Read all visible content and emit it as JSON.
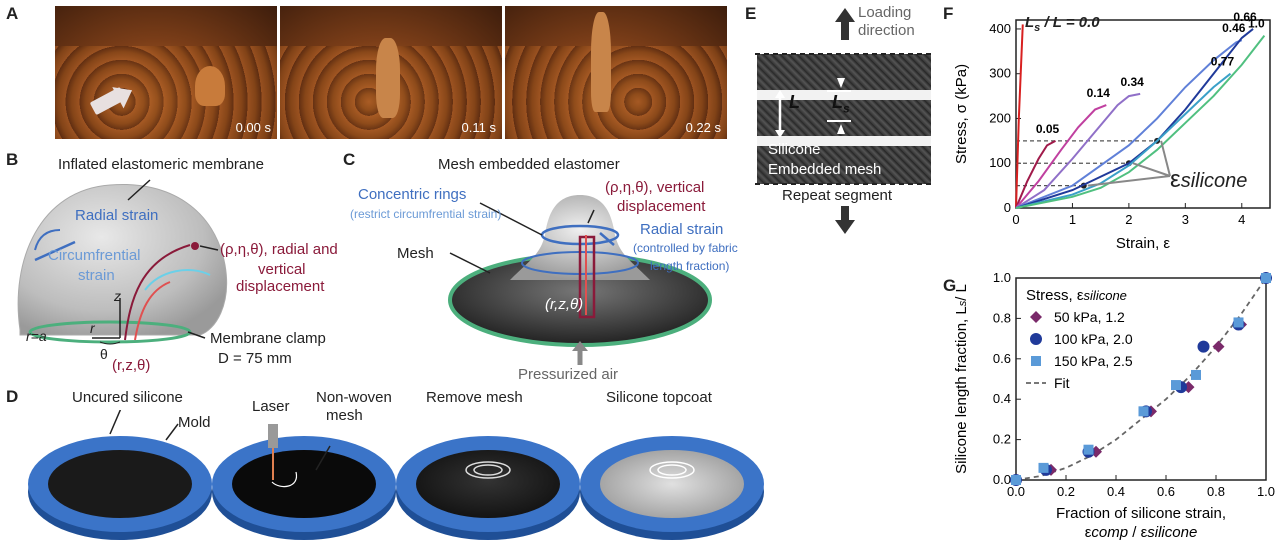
{
  "panels": {
    "A": {
      "label": "A",
      "times": [
        "0.00 s",
        "0.11 s",
        "0.22 s"
      ]
    },
    "B": {
      "label": "B",
      "title": "Inflated elastomeric membrane",
      "radial_strain": "Radial strain",
      "circ1": "Circumfrential",
      "circ2": "strain",
      "disp1": "(ρ,η,θ), radial and",
      "disp2": "vertical",
      "disp3": "displacement",
      "z": "z",
      "r": "r",
      "r_eq_a": "r=a",
      "theta": "θ",
      "coords": "(r,z,θ)",
      "clamp": "Membrane clamp",
      "diameter": "D = 75 mm"
    },
    "C": {
      "label": "C",
      "title": "Mesh embedded elastomer",
      "rings1": "Concentric rings",
      "rings2": "(restrict circumfrential strain)",
      "disp1": "(ρ,η,θ), vertical",
      "disp2": "displacement",
      "radial1": "Radial strain",
      "radial2": "(controlled by fabric",
      "radial3": "length fraction)",
      "mesh": "Mesh",
      "coords": "(r,z,θ)",
      "air": "Pressurized air"
    },
    "D": {
      "label": "D",
      "step1": "Uncured silicone",
      "mold": "Mold",
      "laser": "Laser",
      "nonwoven1": "Non-woven",
      "nonwoven2": "mesh",
      "step3": "Remove mesh",
      "step4": "Silicone topcoat"
    },
    "E": {
      "label": "E",
      "loading1": "Loading",
      "loading2": "direction",
      "L": "L",
      "Ls": "L",
      "Ls_sub": "s",
      "silicone": "Silicone",
      "mesh": "Embedded mesh",
      "repeat": "Repeat segment"
    },
    "F": {
      "label": "F",
      "eps_label": "ε",
      "eps_sub": "silicone",
      "legend_head": "L",
      "legend_sub": "s",
      "legend_tail": " / L = 0.0"
    },
    "G": {
      "label": "G",
      "legend_title": "Stress, ε",
      "legend_title_sub": "silicone",
      "fit": "Fit",
      "ylabel": "Silicone length fraction, L",
      "ylabel_sub": "s",
      "ylabel_tail": "/ L",
      "xlabel1": "Fraction of silicone strain,",
      "xlabel2_a": "ε",
      "xlabel2_b": "comp",
      "xlabel2_c": " / ε",
      "xlabel2_d": "silicone"
    }
  },
  "colors": {
    "red": "#8a1a3a",
    "blue": "#3f6fc0",
    "lightblue": "#6b9ad6",
    "mold": "#3b74c8",
    "green": "#4caf7d"
  },
  "chart_data": [
    {
      "type": "line",
      "xlabel": "Strain, ε",
      "ylabel": "Stress, σ  (kPa)",
      "xlim": [
        0,
        4.5
      ],
      "ylim": [
        0,
        420
      ],
      "xticks": [
        "0",
        "1",
        "2",
        "3",
        "4"
      ],
      "yticks": [
        "0",
        "100",
        "200",
        "300",
        "400"
      ],
      "series": [
        {
          "name": "0.0",
          "color": "#d82020",
          "x": [
            0,
            0.05,
            0.12
          ],
          "y": [
            0,
            200,
            410
          ]
        },
        {
          "name": "0.05",
          "color": "#a01a4a",
          "x": [
            0,
            0.2,
            0.4,
            0.55,
            0.7
          ],
          "y": [
            0,
            60,
            110,
            140,
            150
          ]
        },
        {
          "name": "0.14",
          "color": "#c040a0",
          "x": [
            0,
            0.4,
            0.8,
            1.1,
            1.4,
            1.6
          ],
          "y": [
            0,
            60,
            130,
            180,
            220,
            230
          ]
        },
        {
          "name": "0.34",
          "color": "#9070c8",
          "x": [
            0,
            0.5,
            1.0,
            1.4,
            1.8,
            2.0,
            2.2
          ],
          "y": [
            0,
            40,
            110,
            170,
            230,
            250,
            255
          ]
        },
        {
          "name": "0.46",
          "color": "#6080d8",
          "x": [
            0,
            1.0,
            2.0,
            2.5,
            3.0,
            3.5,
            3.9,
            4.0
          ],
          "y": [
            0,
            50,
            140,
            200,
            270,
            330,
            370,
            375
          ]
        },
        {
          "name": "0.66",
          "color": "#203a9a",
          "x": [
            0,
            1.0,
            2.0,
            2.5,
            3.0,
            3.5,
            4.0,
            4.2
          ],
          "y": [
            0,
            40,
            100,
            150,
            220,
            300,
            380,
            400
          ]
        },
        {
          "name": "0.77",
          "color": "#3aa0c8",
          "x": [
            0,
            1.0,
            1.5,
            2.0,
            2.5,
            3.0,
            3.5,
            3.8
          ],
          "y": [
            0,
            30,
            55,
            95,
            150,
            210,
            270,
            300
          ]
        },
        {
          "name": "1.0",
          "color": "#50c080",
          "x": [
            0,
            1.0,
            1.5,
            2.0,
            2.5,
            3.0,
            3.5,
            4.0,
            4.4
          ],
          "y": [
            0,
            25,
            45,
            80,
            130,
            190,
            250,
            320,
            385
          ]
        }
      ],
      "reference_lines": [
        {
          "stress": 50,
          "strain": 1.2
        },
        {
          "stress": 100,
          "strain": 2.0
        },
        {
          "stress": 150,
          "strain": 2.5
        }
      ]
    },
    {
      "type": "scatter",
      "xlabel": "Fraction of silicone strain, εcomp / εsilicone",
      "ylabel": "Silicone length fraction, Ls/ L",
      "xlim": [
        0,
        1.0
      ],
      "ylim": [
        0,
        1.0
      ],
      "xticks": [
        "0.0",
        "0.2",
        "0.4",
        "0.6",
        "0.8",
        "1.0"
      ],
      "yticks": [
        "0.0",
        "0.2",
        "0.4",
        "0.6",
        "0.8",
        "1.0"
      ],
      "series": [
        {
          "name": "50 kPa, 1.2",
          "color": "#7a2a6a",
          "marker": "diamond",
          "x": [
            0.0,
            0.14,
            0.32,
            0.54,
            0.69,
            0.81,
            0.9,
            1.0
          ],
          "y": [
            0.0,
            0.05,
            0.14,
            0.34,
            0.46,
            0.66,
            0.77,
            1.0
          ]
        },
        {
          "name": "100 kPa, 2.0",
          "color": "#203a9a",
          "marker": "circle",
          "x": [
            0.0,
            0.12,
            0.29,
            0.52,
            0.66,
            0.75,
            0.89,
            1.0
          ],
          "y": [
            0.0,
            0.05,
            0.14,
            0.34,
            0.46,
            0.66,
            0.77,
            1.0
          ]
        },
        {
          "name": "150 kPa, 2.5",
          "color": "#5a9ad8",
          "marker": "square",
          "x": [
            0.0,
            0.11,
            0.29,
            0.51,
            0.64,
            0.72,
            0.89,
            1.0
          ],
          "y": [
            0.0,
            0.06,
            0.15,
            0.34,
            0.47,
            0.52,
            0.78,
            1.0
          ]
        },
        {
          "name": "Fit",
          "color": "#666666",
          "marker": "dashed",
          "x": [
            0.0,
            0.1,
            0.2,
            0.3,
            0.4,
            0.5,
            0.6,
            0.7,
            0.8,
            0.9,
            1.0
          ],
          "y": [
            0.0,
            0.02,
            0.06,
            0.12,
            0.2,
            0.3,
            0.4,
            0.52,
            0.66,
            0.82,
            1.0
          ]
        }
      ]
    }
  ]
}
